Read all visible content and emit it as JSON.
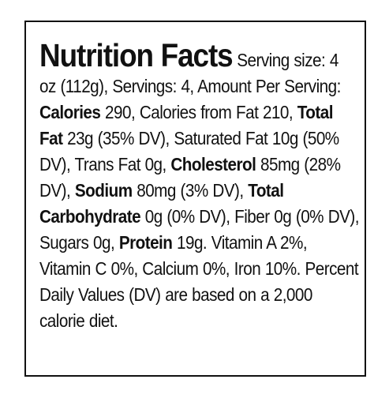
{
  "label": {
    "title": "Nutrition Facts",
    "serving_text": " Serving size: 4 oz (112g), Servings: 4, Amount Per Serving: ",
    "calories_label": "Calories",
    "calories_text": " 290, Calories from Fat 210, ",
    "total_fat_label": "Total Fat",
    "total_fat_text": " 23g (35% DV), Saturated Fat 10g (50% DV), Trans Fat 0g, ",
    "cholesterol_label": "Cholesterol",
    "cholesterol_text": " 85mg (28% DV), ",
    "sodium_label": "Sodium",
    "sodium_text": " 80mg (3% DV), ",
    "total_carb_label": "Total Carbohydrate",
    "total_carb_text": " 0g (0% DV), Fiber 0g (0% DV), Sugars 0g, ",
    "protein_label": "Protein",
    "protein_text": " 19g. Vitamin A 2%, Vitamin C 0%, Calcium 0%, Iron 10%. Percent Daily Values (DV) are based on a 2,000 calorie diet."
  }
}
